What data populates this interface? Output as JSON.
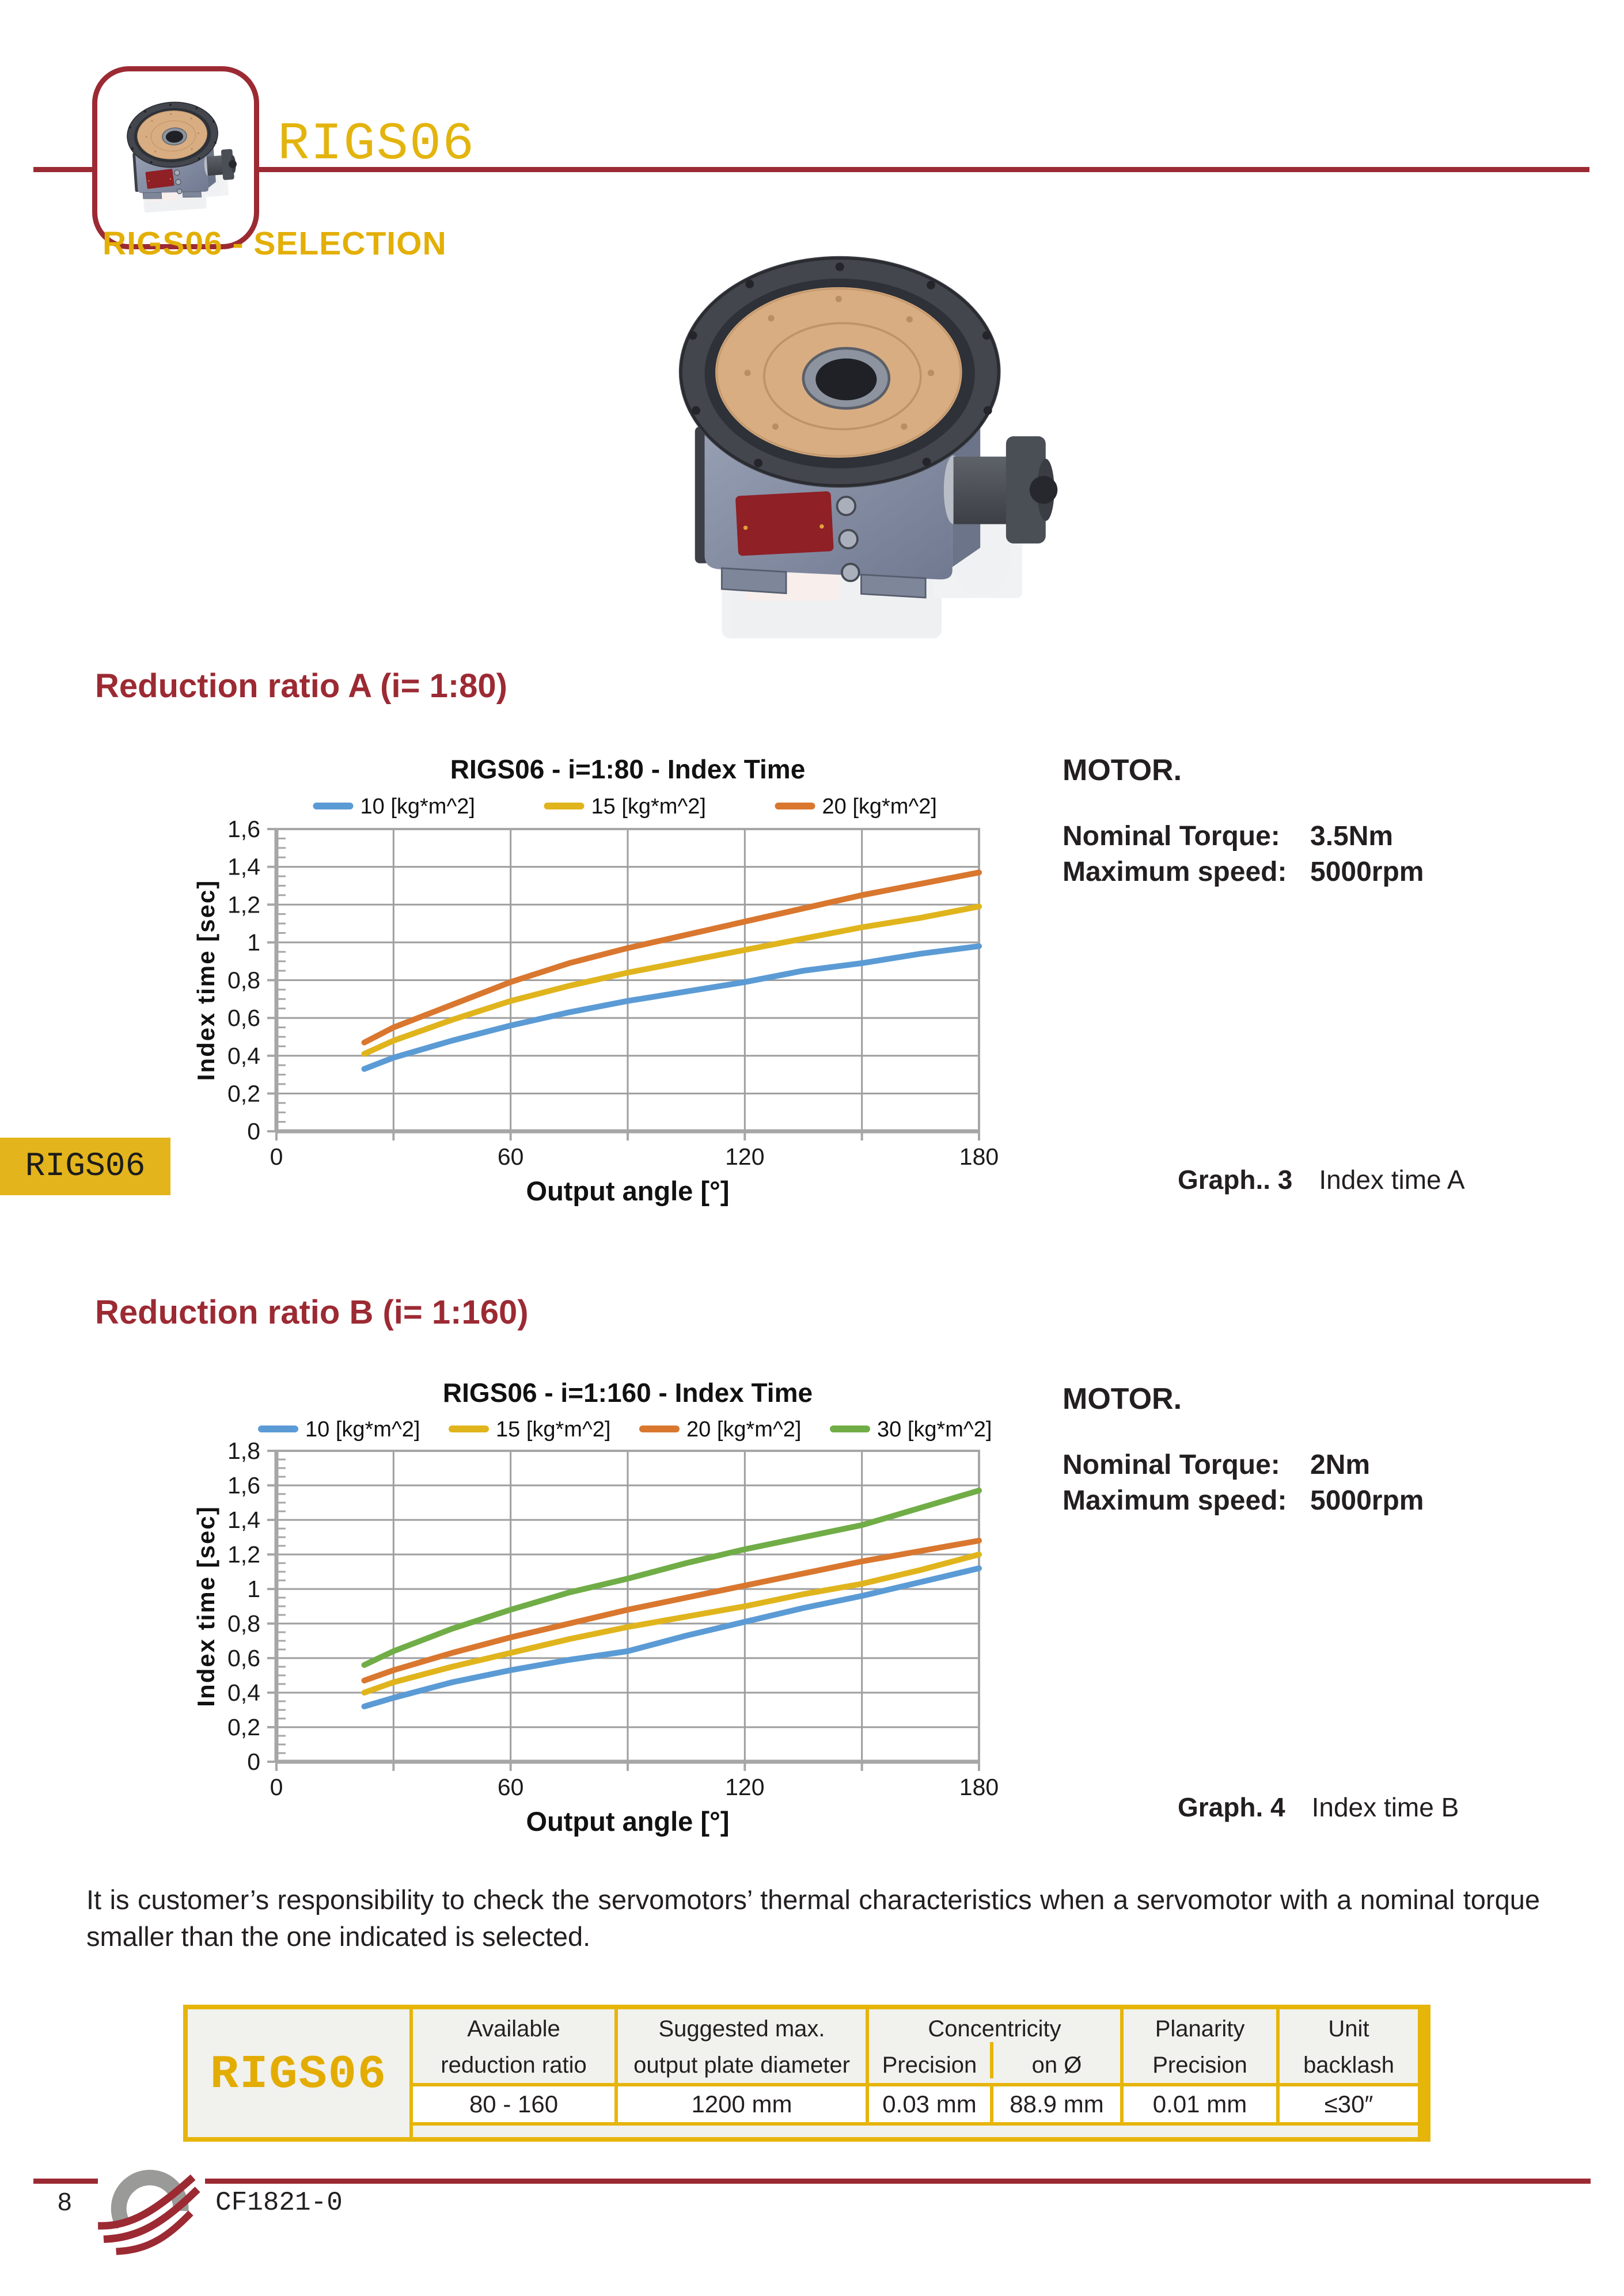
{
  "header": {
    "brand": "RIGS06",
    "section_title": "RIGS06 - SELECTION"
  },
  "side_tab": {
    "label": "RIGS06"
  },
  "sections": {
    "a": {
      "heading": "Reduction ratio A (i= 1:80)",
      "motor": {
        "title": "MOTOR.",
        "torque_label": "Nominal Torque:",
        "torque_value": "3.5Nm",
        "speed_label": "Maximum speed:",
        "speed_value": "5000rpm"
      },
      "caption": {
        "label": "Graph.. 3",
        "text": "Index time A"
      }
    },
    "b": {
      "heading": "Reduction ratio B (i= 1:160)",
      "motor": {
        "title": "MOTOR.",
        "torque_label": "Nominal Torque:",
        "torque_value": "2Nm",
        "speed_label": "Maximum speed:",
        "speed_value": "5000rpm"
      },
      "caption": {
        "label": "Graph. 4",
        "text": "Index time B"
      }
    }
  },
  "note": "It is customer’s responsibility to check the servomotors’ thermal characteristics when a servomotor with a nominal torque smaller than the one indicated is selected.",
  "spec_table": {
    "product": "RIGS06",
    "col_available": {
      "l1": "Available",
      "l2": "reduction ratio",
      "value": "80 - 160"
    },
    "col_suggested": {
      "l1": "Suggested max.",
      "l2": "output plate diameter",
      "value": "1200 mm"
    },
    "col_concentricity": {
      "l1": "Concentricity",
      "sub1": "Precision",
      "sub2": "on Ø",
      "value1": "0.03 mm",
      "value2": "88.9 mm"
    },
    "col_planarity": {
      "l1": "Planarity",
      "l2": "Precision",
      "value": "0.01 mm"
    },
    "col_unit": {
      "l1": "Unit",
      "l2": "backlash",
      "value": "≤30″"
    }
  },
  "footer": {
    "page_number": "8",
    "doc_code": "CF1821-0"
  },
  "colors": {
    "accent_gold": "#E3B40E",
    "dark_red": "#9C2A33",
    "text": "#231F20",
    "grid": "#9E9E9E",
    "axis": "#A6A6A6",
    "series_blue": "#5B9BD5",
    "series_yellow": "#E0B41C",
    "series_orange": "#D9772F",
    "series_green": "#70AD47"
  },
  "chart_data": [
    {
      "type": "line",
      "title": "RIGS06  - i=1:80  - Index Time",
      "xlabel": "Output angle [°]",
      "ylabel": "Index time [sec]",
      "xlim": [
        0,
        180
      ],
      "ylim": [
        0,
        1.6
      ],
      "x_grid_step": 30,
      "y_grid_step": 0.2,
      "x_major_ticks": [
        0,
        60,
        120,
        180
      ],
      "y_tick_labels": [
        "0",
        "0,2",
        "0,4",
        "0,6",
        "0,8",
        "1",
        "1,2",
        "1,4",
        "1,6"
      ],
      "grid": true,
      "legend_position": "top",
      "x": [
        22.5,
        30,
        45,
        60,
        75,
        90,
        105,
        120,
        135,
        150,
        165,
        180
      ],
      "series": [
        {
          "name": "10 [kg*m^2]",
          "color": "#5B9BD5",
          "values": [
            0.33,
            0.39,
            0.48,
            0.56,
            0.63,
            0.69,
            0.74,
            0.79,
            0.85,
            0.89,
            0.94,
            0.98
          ]
        },
        {
          "name": "15 [kg*m^2]",
          "color": "#E0B41C",
          "values": [
            0.41,
            0.48,
            0.59,
            0.69,
            0.77,
            0.84,
            0.9,
            0.96,
            1.02,
            1.08,
            1.13,
            1.19
          ]
        },
        {
          "name": "20 [kg*m^2]",
          "color": "#D9772F",
          "values": [
            0.47,
            0.55,
            0.67,
            0.79,
            0.89,
            0.97,
            1.04,
            1.11,
            1.18,
            1.25,
            1.31,
            1.37
          ]
        }
      ]
    },
    {
      "type": "line",
      "title": "RIGS06  - i=1:160 -  Index Time",
      "xlabel": "Output angle [°]",
      "ylabel": "Index time [sec]",
      "xlim": [
        0,
        180
      ],
      "ylim": [
        0,
        1.8
      ],
      "x_grid_step": 30,
      "y_grid_step": 0.2,
      "x_major_ticks": [
        0,
        60,
        120,
        180
      ],
      "y_tick_labels": [
        "0",
        "0,2",
        "0,4",
        "0,6",
        "0,8",
        "1",
        "1,2",
        "1,4",
        "1,6",
        "1,8"
      ],
      "grid": true,
      "legend_position": "top",
      "x": [
        22.5,
        30,
        45,
        60,
        75,
        90,
        105,
        120,
        135,
        150,
        165,
        180
      ],
      "series": [
        {
          "name": "10 [kg*m^2]",
          "color": "#5B9BD5",
          "values": [
            0.32,
            0.37,
            0.46,
            0.53,
            0.59,
            0.64,
            0.73,
            0.81,
            0.89,
            0.96,
            1.04,
            1.12
          ]
        },
        {
          "name": "15 [kg*m^2]",
          "color": "#E0B41C",
          "values": [
            0.4,
            0.46,
            0.55,
            0.63,
            0.71,
            0.78,
            0.84,
            0.9,
            0.97,
            1.03,
            1.11,
            1.2
          ]
        },
        {
          "name": "20 [kg*m^2]",
          "color": "#D9772F",
          "values": [
            0.47,
            0.53,
            0.63,
            0.72,
            0.8,
            0.88,
            0.95,
            1.02,
            1.09,
            1.16,
            1.22,
            1.28
          ]
        },
        {
          "name": "30 [kg*m^2]",
          "color": "#70AD47",
          "values": [
            0.56,
            0.64,
            0.77,
            0.88,
            0.98,
            1.06,
            1.15,
            1.23,
            1.3,
            1.37,
            1.47,
            1.57
          ]
        }
      ]
    }
  ]
}
